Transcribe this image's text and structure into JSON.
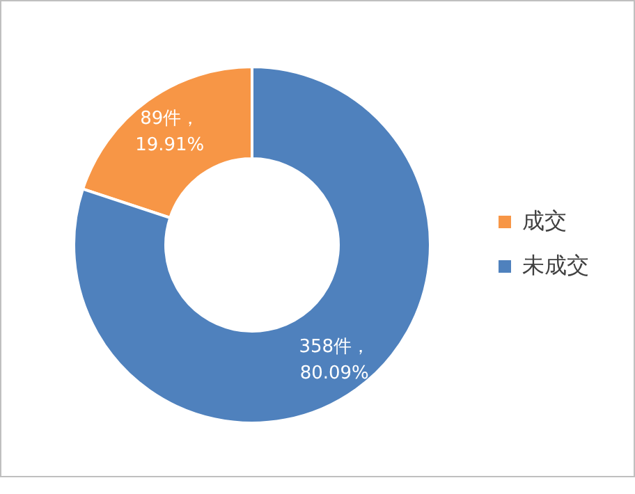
{
  "chart_data": {
    "type": "donut",
    "categories": [
      "成交",
      "未成交"
    ],
    "values": [
      89,
      358
    ],
    "colors": [
      "#f79646",
      "#4f81bd"
    ],
    "value_labels": [
      "89件，\n19.91%",
      "358件，\n80.09%"
    ],
    "legend": "right"
  }
}
